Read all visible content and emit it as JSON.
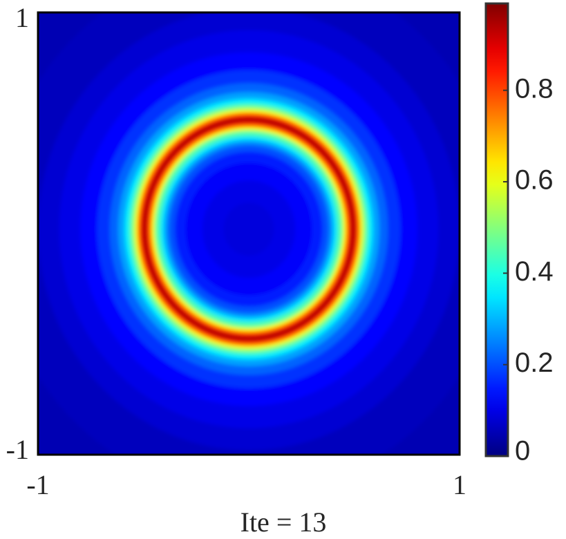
{
  "chart_data": {
    "type": "radial_heatmap",
    "xlabel": "Ite = 13",
    "xlim": [
      -1,
      1
    ],
    "ylim": [
      -1,
      1
    ],
    "xticks": [
      -1,
      1
    ],
    "yticks": [
      -1,
      1
    ],
    "center": [
      0.0,
      0.02
    ],
    "r": [
      1.45,
      1.2,
      1.0,
      0.9,
      0.8,
      0.72,
      0.66,
      0.62,
      0.59,
      0.57,
      0.555,
      0.54,
      0.53,
      0.52,
      0.51,
      0.5,
      0.49,
      0.48,
      0.47,
      0.46,
      0.45,
      0.44,
      0.42,
      0.4,
      0.38,
      0.35,
      0.3,
      0.22,
      0.12
    ],
    "values": [
      0.05,
      0.06,
      0.08,
      0.1,
      0.13,
      0.17,
      0.22,
      0.28,
      0.35,
      0.43,
      0.52,
      0.62,
      0.72,
      0.82,
      0.9,
      0.97,
      0.9,
      0.82,
      0.72,
      0.62,
      0.52,
      0.44,
      0.34,
      0.26,
      0.2,
      0.15,
      0.12,
      0.1,
      0.09
    ],
    "colormap": "jet",
    "clim": [
      0,
      0.99
    ],
    "colorbar_ticks": [
      0,
      0.2,
      0.4,
      0.6,
      0.8
    ]
  }
}
